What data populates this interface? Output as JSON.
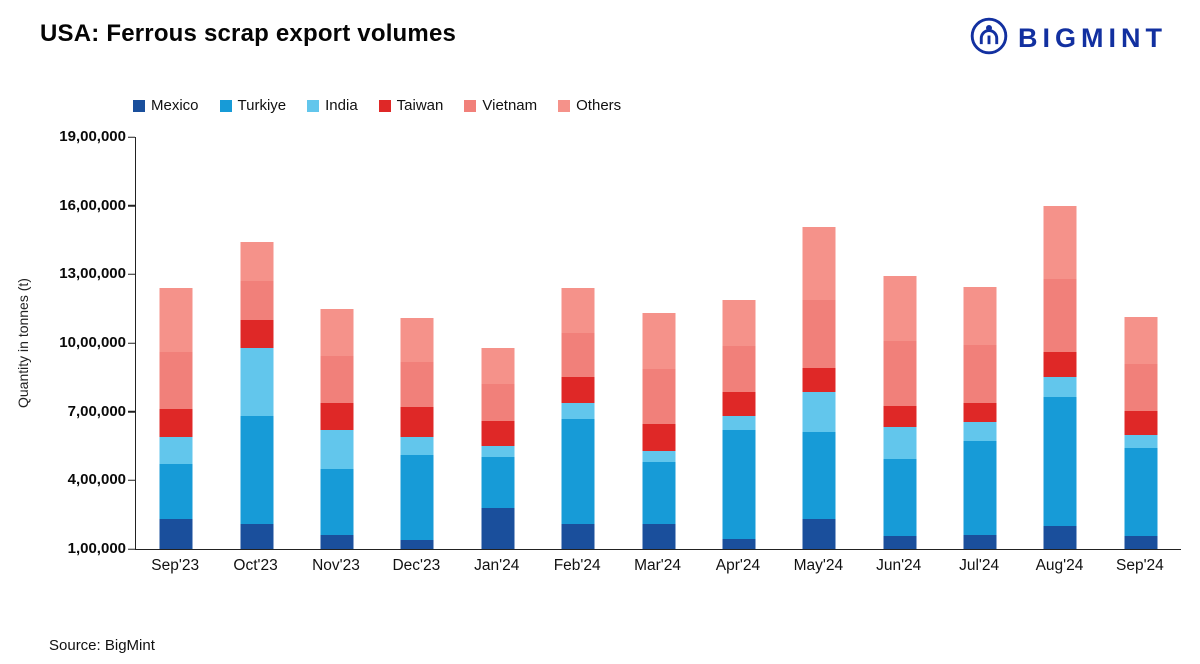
{
  "header": {
    "title": "USA: Ferrous scrap export volumes",
    "brand": "BIGMINT",
    "brand_color": "#1230A0"
  },
  "footer": {
    "source": "Source: BigMint"
  },
  "chart_data": {
    "type": "bar",
    "stacked": true,
    "title": "USA: Ferrous scrap export volumes",
    "xlabel": "",
    "ylabel": "Quantity in tonnes (t)",
    "ylim": [
      100000,
      1900000
    ],
    "ytick_step": 300000,
    "ytick_labels": [
      "1,00,000",
      "4,00,000",
      "7,00,000",
      "10,00,000",
      "13,00,000",
      "16,00,000",
      "19,00,000"
    ],
    "grid": false,
    "legend_position": "top",
    "categories": [
      "Sep'23",
      "Oct'23",
      "Nov'23",
      "Dec'23",
      "Jan'24",
      "Feb'24",
      "Mar'24",
      "Apr'24",
      "May'24",
      "Jun'24",
      "Jul'24",
      "Aug'24",
      "Sep'24"
    ],
    "series": [
      {
        "name": "Mexico",
        "color": "#1A4F9C",
        "values": [
          230000,
          210000,
          160000,
          140000,
          280000,
          210000,
          210000,
          145000,
          230000,
          155000,
          160000,
          200000,
          155000
        ]
      },
      {
        "name": "Turkiye",
        "color": "#179BD7",
        "values": [
          240000,
          470000,
          290000,
          370000,
          220000,
          460000,
          270000,
          475000,
          380000,
          340000,
          410000,
          565000,
          385000
        ]
      },
      {
        "name": "India",
        "color": "#62C6EC",
        "values": [
          120000,
          300000,
          170000,
          80000,
          50000,
          70000,
          50000,
          60000,
          175000,
          140000,
          85000,
          85000,
          60000
        ]
      },
      {
        "name": "Taiwan",
        "color": "#DF2827",
        "values": [
          120000,
          120000,
          120000,
          130000,
          110000,
          110000,
          115000,
          105000,
          105000,
          90000,
          85000,
          110000,
          105000
        ]
      },
      {
        "name": "Vietnam",
        "color": "#F1807A",
        "values": [
          250000,
          170000,
          205000,
          195000,
          160000,
          195000,
          240000,
          200000,
          300000,
          285000,
          250000,
          320000,
          205000
        ]
      },
      {
        "name": "Others",
        "color": "#F5928A",
        "values": [
          280000,
          170000,
          205000,
          195000,
          160000,
          195000,
          245000,
          205000,
          315000,
          285000,
          255000,
          320000,
          205000
        ]
      }
    ],
    "totals": [
      1240000,
      1440000,
      1150000,
      1110000,
      980000,
      1240000,
      1130000,
      1190000,
      1505000,
      1295000,
      1245000,
      1600000,
      1115000
    ]
  }
}
